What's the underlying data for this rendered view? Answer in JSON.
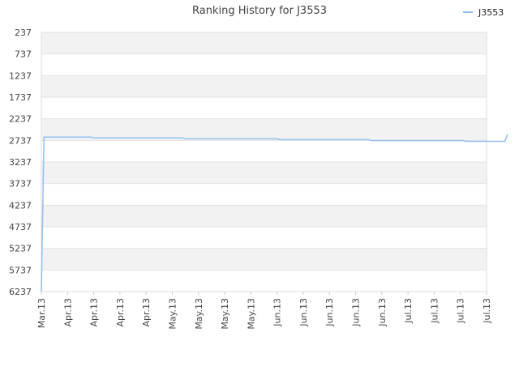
{
  "chart_data": {
    "type": "line",
    "title": "Ranking History for J3553",
    "xlabel": "",
    "ylabel": "",
    "y_reversed": true,
    "ylim": [
      237,
      6237
    ],
    "y_ticks": [
      237,
      737,
      1237,
      1737,
      2237,
      2737,
      3237,
      3737,
      4237,
      4737,
      5237,
      5737,
      6237
    ],
    "x_tick_labels": [
      "Mar.13",
      "Apr.13",
      "Apr.13",
      "Apr.13",
      "Apr.13",
      "May.13",
      "May.13",
      "May.13",
      "May.13",
      "Jun.13",
      "Jun.13",
      "Jun.13",
      "Jun.13",
      "Jun.13",
      "Jul.13",
      "Jul.13",
      "Jul.13",
      "Jul.13"
    ],
    "grid": "horizontal bands",
    "legend_position": "top-right",
    "series": [
      {
        "name": "J3553",
        "color": "#90c0f0",
        "x": [
          0,
          0.1,
          1,
          1.9,
          2,
          5.4,
          5.5,
          9,
          9.1,
          12.5,
          12.6,
          16.1,
          16.2,
          17.7,
          17.8
        ],
        "y": [
          6237,
          2660,
          2660,
          2660,
          2680,
          2680,
          2700,
          2700,
          2720,
          2720,
          2740,
          2740,
          2760,
          2760,
          2600
        ]
      }
    ]
  }
}
